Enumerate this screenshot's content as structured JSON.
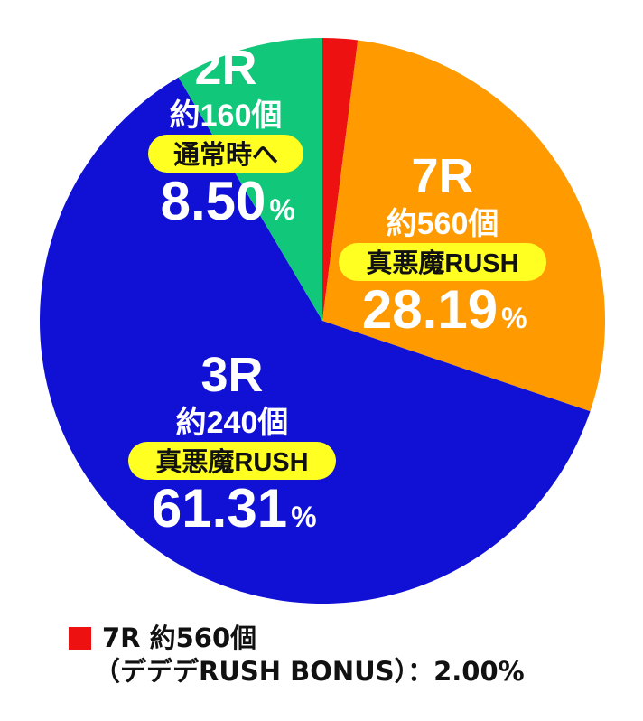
{
  "chart_data": {
    "type": "pie",
    "slices": [
      {
        "id": "rush-bonus",
        "value": 2.0,
        "color": "#ee1111"
      },
      {
        "id": "r7",
        "round": "7R",
        "payout": "約560個",
        "route": "真悪魔RUSH",
        "percent": "28.19",
        "value": 28.19,
        "color": "#ff9a00"
      },
      {
        "id": "r3",
        "round": "3R",
        "payout": "約240個",
        "route": "真悪魔RUSH",
        "percent": "61.31",
        "value": 61.31,
        "color": "#1111d6"
      },
      {
        "id": "r2",
        "round": "2R",
        "payout": "約160個",
        "route": "通常時へ",
        "percent": "8.50",
        "value": 8.5,
        "color": "#11c77a"
      }
    ],
    "unit": "%",
    "start_angle": "12 o'clock, clockwise"
  },
  "legend": {
    "line1": "7R 約560個",
    "line2": "（デデデRUSH BONUS）：2.00%",
    "swatch_color": "#ee1111"
  },
  "colors": {
    "route_badge": "#ffff22",
    "label_text_light": "#ffffff",
    "label_text_dark": "#111111"
  }
}
